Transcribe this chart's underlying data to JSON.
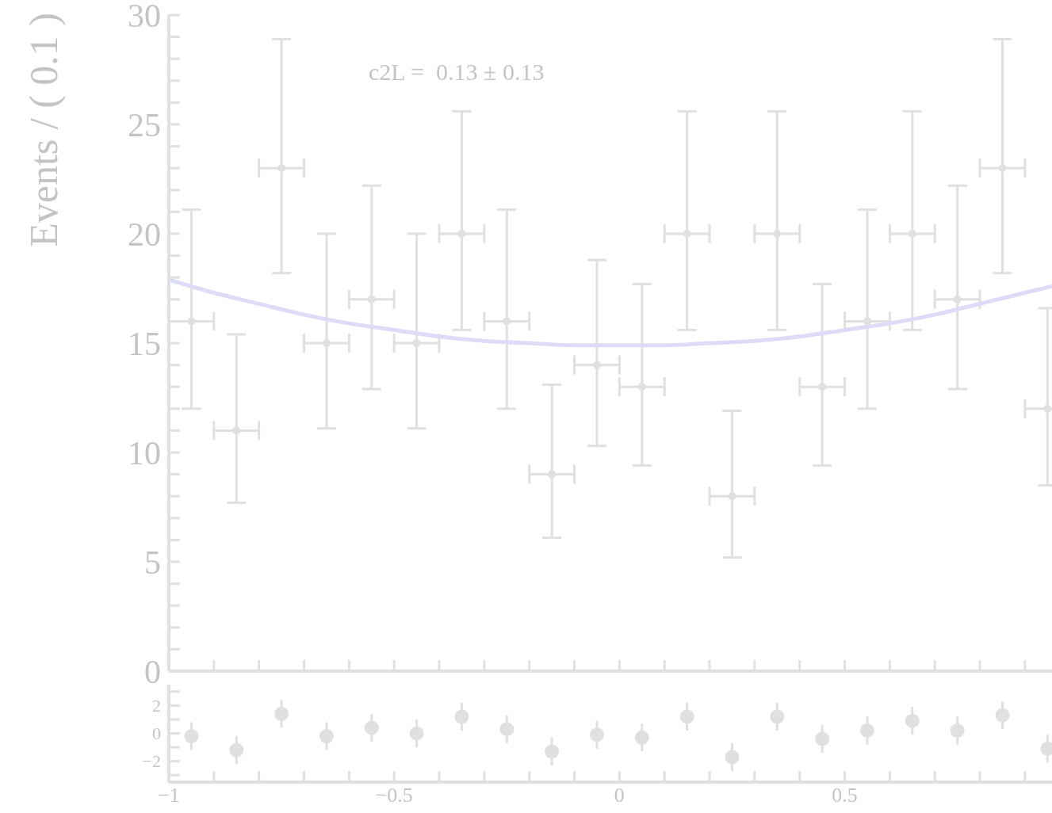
{
  "chart_data": [
    {
      "type": "scatter",
      "ylabel": "Events / ( 0.1 )",
      "annotations": [
        "c2L =  0.13 ± 0.13"
      ],
      "xlim": [
        -1,
        0.96
      ],
      "ylim": [
        0,
        30
      ],
      "tick_labels": "y",
      "xticks": [
        -1,
        -0.9,
        -0.8,
        -0.7,
        -0.6,
        -0.5,
        -0.4,
        -0.3,
        -0.2,
        -0.1,
        0,
        0.1,
        0.2,
        0.3,
        0.4,
        0.5,
        0.6,
        0.7,
        0.8,
        0.9
      ],
      "yticks": [
        0,
        {
          "value": 1,
          "label": null
        },
        {
          "value": 2,
          "label": null
        },
        {
          "value": 3,
          "label": null
        },
        {
          "value": 4,
          "label": null
        },
        5,
        {
          "value": 6,
          "label": null
        },
        {
          "value": 7,
          "label": null
        },
        {
          "value": 8,
          "label": null
        },
        {
          "value": 9,
          "label": null
        },
        10,
        {
          "value": 11,
          "label": null
        },
        {
          "value": 12,
          "label": null
        },
        {
          "value": 13,
          "label": null
        },
        {
          "value": 14,
          "label": null
        },
        15,
        {
          "value": 16,
          "label": null
        },
        {
          "value": 17,
          "label": null
        },
        {
          "value": 18,
          "label": null
        },
        {
          "value": 19,
          "label": null
        },
        20,
        {
          "value": 21,
          "label": null
        },
        {
          "value": 22,
          "label": null
        },
        {
          "value": 23,
          "label": null
        },
        {
          "value": 24,
          "label": null
        },
        25,
        {
          "value": 26,
          "label": null
        },
        {
          "value": 27,
          "label": null
        },
        {
          "value": 28,
          "label": null
        },
        {
          "value": 29,
          "label": null
        },
        30
      ],
      "series": [
        {
          "type": "scatter",
          "marker": "circle",
          "color": "#e0e0e0",
          "x": [
            -0.95,
            -0.85,
            -0.75,
            -0.65,
            -0.55,
            -0.45,
            -0.35,
            -0.25,
            -0.15,
            -0.05,
            0.05,
            0.15,
            0.25,
            0.35,
            0.45,
            0.55,
            0.65,
            0.75,
            0.85,
            0.95
          ],
          "values": [
            16,
            11,
            23,
            15,
            17,
            15,
            20,
            16,
            9,
            14,
            13,
            20,
            8,
            20,
            13,
            16,
            20,
            17,
            23,
            12
          ],
          "errors": [
            [
              12.0,
              21.1
            ],
            [
              7.7,
              15.4
            ],
            [
              18.2,
              28.9
            ],
            [
              11.1,
              20.0
            ],
            [
              12.9,
              22.2
            ],
            [
              11.1,
              20.0
            ],
            [
              15.6,
              25.6
            ],
            [
              12.0,
              21.1
            ],
            [
              6.1,
              13.1
            ],
            [
              10.3,
              18.8
            ],
            [
              9.4,
              17.7
            ],
            [
              15.6,
              25.6
            ],
            [
              5.2,
              11.9
            ],
            [
              15.6,
              25.6
            ],
            [
              9.4,
              17.7
            ],
            [
              12.0,
              21.1
            ],
            [
              15.6,
              25.6
            ],
            [
              12.9,
              22.2
            ],
            [
              18.2,
              28.9
            ],
            [
              8.5,
              16.6
            ]
          ],
          "xerrors": [
            0.05,
            0.05,
            0.05,
            0.05,
            0.05,
            0.05,
            0.05,
            0.05,
            0.05,
            0.05,
            0.05,
            0.05,
            0.05,
            0.05,
            0.05,
            0.05,
            0.05,
            0.05,
            0.05,
            0.05
          ]
        },
        {
          "type": "line",
          "color": "#dcdcf8",
          "x": [
            -1,
            -0.9,
            -0.8,
            -0.7,
            -0.6,
            -0.5,
            -0.4,
            -0.3,
            -0.2,
            -0.1,
            0,
            0.1,
            0.2,
            0.3,
            0.4,
            0.5,
            0.6,
            0.7,
            0.8,
            0.9,
            0.96
          ],
          "values": [
            17.9,
            17.3,
            16.8,
            16.3,
            15.9,
            15.6,
            15.3,
            15.1,
            15.0,
            14.9,
            14.9,
            14.9,
            15.0,
            15.1,
            15.3,
            15.6,
            15.9,
            16.3,
            16.8,
            17.3,
            17.6
          ]
        }
      ]
    },
    {
      "type": "scatter",
      "color": "#e0e0e0",
      "marker": "circle",
      "xlim": [
        -1,
        0.96
      ],
      "ylim": [
        -3.5,
        3.5
      ],
      "xticks": [
        {
          "value": -1,
          "label": "−1"
        },
        {
          "value": -0.9,
          "label": null
        },
        {
          "value": -0.8,
          "label": null
        },
        {
          "value": -0.7,
          "label": null
        },
        {
          "value": -0.6,
          "label": null
        },
        {
          "value": -0.5,
          "label": "−0.5"
        },
        {
          "value": -0.4,
          "label": null
        },
        {
          "value": -0.3,
          "label": null
        },
        {
          "value": -0.2,
          "label": null
        },
        {
          "value": -0.1,
          "label": null
        },
        0,
        {
          "value": 0.1,
          "label": null
        },
        {
          "value": 0.2,
          "label": null
        },
        {
          "value": 0.3,
          "label": null
        },
        {
          "value": 0.4,
          "label": null
        },
        0.5,
        {
          "value": 0.6,
          "label": null
        },
        {
          "value": 0.7,
          "label": null
        },
        {
          "value": 0.8,
          "label": null
        },
        {
          "value": 0.9,
          "label": null
        }
      ],
      "yticks": [
        {
          "value": -3,
          "label": null
        },
        {
          "value": -2,
          "label": "−2"
        },
        {
          "value": -1,
          "label": null
        },
        0,
        {
          "value": 1,
          "label": null
        },
        2,
        {
          "value": 3,
          "label": null
        }
      ],
      "x": [
        -0.95,
        -0.85,
        -0.75,
        -0.65,
        -0.55,
        -0.45,
        -0.35,
        -0.25,
        -0.15,
        -0.05,
        0.05,
        0.15,
        0.25,
        0.35,
        0.45,
        0.55,
        0.65,
        0.75,
        0.85,
        0.95
      ],
      "values": [
        -0.2,
        -1.2,
        1.4,
        -0.2,
        0.4,
        0.0,
        1.2,
        0.3,
        -1.3,
        -0.1,
        -0.3,
        1.2,
        -1.7,
        1.2,
        -0.4,
        0.2,
        0.9,
        0.2,
        1.3,
        -1.1
      ],
      "errors": [
        1,
        1,
        1,
        1,
        1,
        1,
        1,
        1,
        1,
        1,
        1,
        1,
        1,
        1,
        1,
        1,
        1,
        1,
        1,
        1
      ]
    }
  ]
}
